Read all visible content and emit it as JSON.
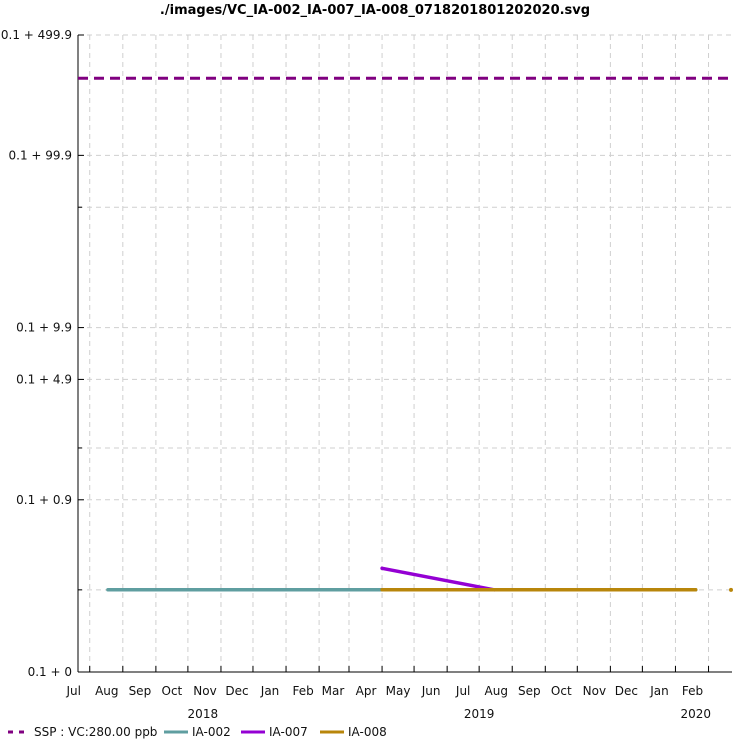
{
  "chart_data": {
    "type": "line",
    "title": "./images/VC_IA-002_IA-007_IA-008_0718201801202020.svg",
    "xlabel": "",
    "ylabel": "",
    "y_scale": "log(0.1 + y)",
    "ylim": [
      0,
      499.9
    ],
    "y_ticks": [
      {
        "value": 0,
        "label": "0.1 + 0"
      },
      {
        "value": 0.9,
        "label": "0.1 + 0.9"
      },
      {
        "value": 4.9,
        "label": "0.1 + 4.9"
      },
      {
        "value": 9.9,
        "label": "0.1 + 9.9"
      },
      {
        "value": 99.9,
        "label": "0.1 + 99.9"
      },
      {
        "value": 499.9,
        "label": "0.1 + 499.9"
      }
    ],
    "y_minor_ticks": [
      0.2,
      1.9,
      49.9
    ],
    "xlim": [
      "2018-06-20",
      "2020-02-23"
    ],
    "x_month_ticks": [
      {
        "date": "2018-07-01",
        "label": "Jul"
      },
      {
        "date": "2018-08-01",
        "label": "Aug"
      },
      {
        "date": "2018-09-01",
        "label": "Sep"
      },
      {
        "date": "2018-10-01",
        "label": "Oct"
      },
      {
        "date": "2018-11-01",
        "label": "Nov"
      },
      {
        "date": "2018-12-01",
        "label": "Dec"
      },
      {
        "date": "2019-01-01",
        "label": "Jan"
      },
      {
        "date": "2019-02-01",
        "label": "Feb"
      },
      {
        "date": "2019-03-01",
        "label": "Mar"
      },
      {
        "date": "2019-04-01",
        "label": "Apr"
      },
      {
        "date": "2019-05-01",
        "label": "May"
      },
      {
        "date": "2019-06-01",
        "label": "Jun"
      },
      {
        "date": "2019-07-01",
        "label": "Jul"
      },
      {
        "date": "2019-08-01",
        "label": "Aug"
      },
      {
        "date": "2019-09-01",
        "label": "Sep"
      },
      {
        "date": "2019-10-01",
        "label": "Oct"
      },
      {
        "date": "2019-11-01",
        "label": "Nov"
      },
      {
        "date": "2019-12-01",
        "label": "Dec"
      },
      {
        "date": "2020-01-01",
        "label": "Jan"
      },
      {
        "date": "2020-02-01",
        "label": "Feb"
      }
    ],
    "x_year_labels": [
      {
        "date": "2018-10-15",
        "label": "2018"
      },
      {
        "date": "2019-07-01",
        "label": "2019"
      },
      {
        "date": "2020-01-20",
        "label": "2020"
      }
    ],
    "grid": true,
    "legend_placement": "bottom",
    "series": [
      {
        "name": "SSP : VC:280.00 ppb",
        "color": "#800080",
        "dash": true,
        "points": [
          {
            "x": "2018-06-20",
            "y": 280
          },
          {
            "x": "2020-02-23",
            "y": 280
          }
        ]
      },
      {
        "name": "IA-002",
        "color": "#5f9ea0",
        "dash": false,
        "points": [
          {
            "x": "2018-07-18",
            "y": 0.2
          },
          {
            "x": "2020-01-20",
            "y": 0.2
          }
        ]
      },
      {
        "name": "IA-007",
        "color": "#9400d3",
        "dash": false,
        "points": [
          {
            "x": "2019-04-01",
            "y": 0.3
          },
          {
            "x": "2019-07-15",
            "y": 0.2
          }
        ]
      },
      {
        "name": "IA-008",
        "color": "#b8860b",
        "dash": false,
        "points": [
          {
            "x": "2019-04-01",
            "y": 0.2
          },
          {
            "x": "2020-01-20",
            "y": 0.2
          }
        ]
      }
    ]
  }
}
